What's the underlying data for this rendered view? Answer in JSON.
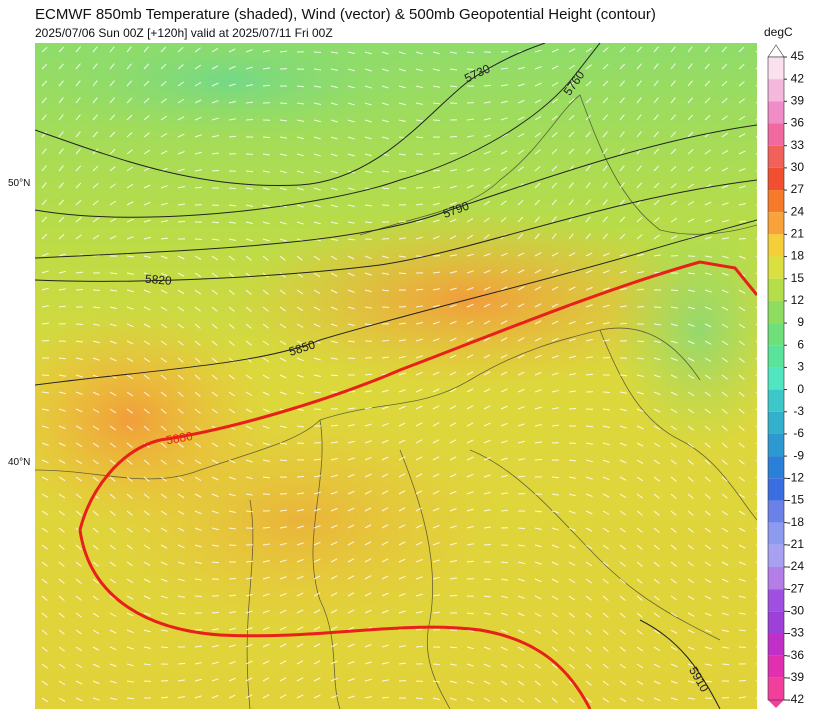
{
  "header": {
    "title": "ECMWF 850mb Temperature (shaded), Wind (vector) & 500mb Geopotential Height (contour)",
    "subtitle": "2025/07/06 Sun 00Z [+120h] valid at 2025/07/11 Fri 00Z"
  },
  "map": {
    "latitude_labels": [
      "50°N",
      "40°N"
    ],
    "contours": [
      {
        "label": "5730"
      },
      {
        "label": "5760"
      },
      {
        "label": "5790"
      },
      {
        "label": "5820"
      },
      {
        "label": "5850"
      },
      {
        "label": "5880"
      },
      {
        "label": "5910"
      }
    ]
  },
  "colorbar": {
    "unit": "degC",
    "ticks": [
      "45",
      "42",
      "39",
      "36",
      "33",
      "30",
      "27",
      "24",
      "21",
      "18",
      "15",
      "12",
      "9",
      "6",
      "3",
      "0",
      "-3",
      "-6",
      "-9",
      "-12",
      "-15",
      "-18",
      "-21",
      "-24",
      "-27",
      "-30",
      "-33",
      "-36",
      "-39",
      "-42"
    ],
    "colors": [
      "#fbe0ee",
      "#f5b8dd",
      "#f08cc8",
      "#f06aa0",
      "#f2605a",
      "#f05030",
      "#f57a2a",
      "#f9a23a",
      "#f5cf3a",
      "#d9e040",
      "#b4dd4a",
      "#8fdd60",
      "#6ee07a",
      "#5ae39a",
      "#50e6c0",
      "#3cc8c8",
      "#32b0cc",
      "#2c9ad0",
      "#2a80d8",
      "#3a6ee0",
      "#6a82e8",
      "#8c9af0",
      "#a8a0f0",
      "#b47ee8",
      "#a050e0",
      "#9c40d8",
      "#c030c8",
      "#e030b0",
      "#f0409c"
    ]
  }
}
